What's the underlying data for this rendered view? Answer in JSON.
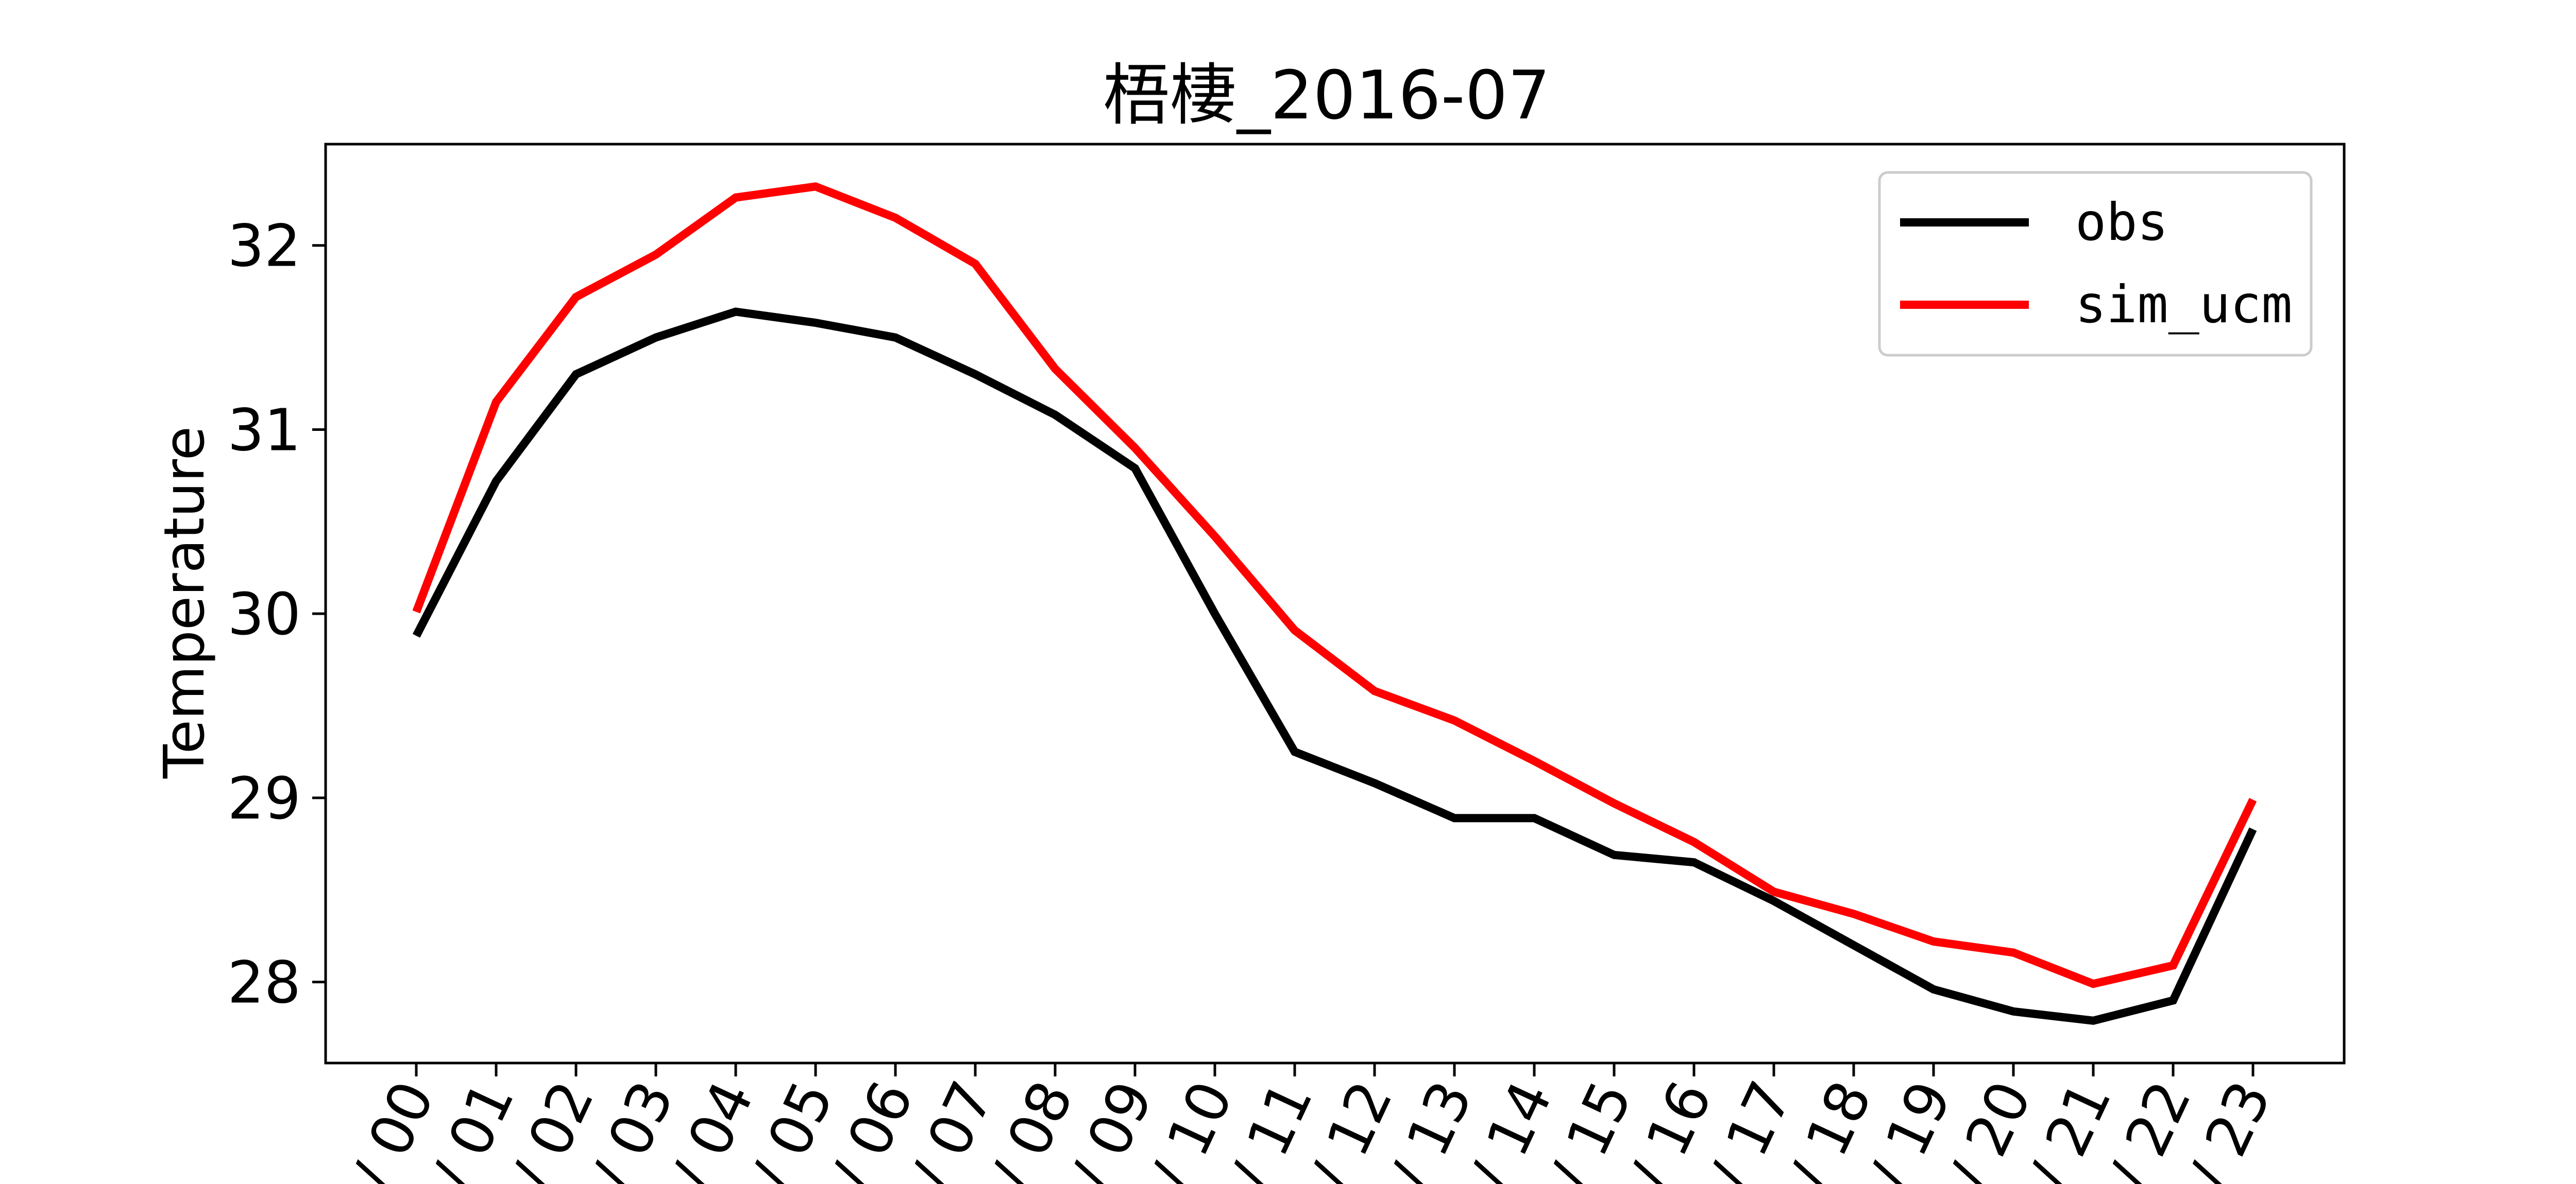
{
  "chart_data": {
    "type": "line",
    "title": "梧棲_2016-07",
    "xlabel": "",
    "ylabel": "Temperature",
    "categories": [
      "00",
      "01",
      "02",
      "03",
      "04",
      "05",
      "06",
      "07",
      "08",
      "09",
      "10",
      "11",
      "12",
      "13",
      "14",
      "15",
      "16",
      "17",
      "18",
      "19",
      "20",
      "21",
      "22",
      "23"
    ],
    "x_tick_prefix": "/ ",
    "yticks": [
      28,
      29,
      30,
      31,
      32
    ],
    "ylim": [
      27.56,
      32.55
    ],
    "grid": false,
    "legend_position": "top-right",
    "series": [
      {
        "name": "obs",
        "color": "#000000",
        "values": [
          29.88,
          30.72,
          31.3,
          31.5,
          31.64,
          31.58,
          31.5,
          31.3,
          31.08,
          30.79,
          30.0,
          29.25,
          29.08,
          28.89,
          28.89,
          28.69,
          28.65,
          28.44,
          28.2,
          27.96,
          27.84,
          27.79,
          27.9,
          28.83
        ]
      },
      {
        "name": "sim_ucm",
        "color": "#ff0000",
        "values": [
          30.01,
          31.15,
          31.72,
          31.95,
          32.26,
          32.32,
          32.15,
          31.9,
          31.33,
          30.9,
          30.42,
          29.91,
          29.58,
          29.42,
          29.2,
          28.97,
          28.76,
          28.49,
          28.37,
          28.22,
          28.16,
          27.99,
          28.09,
          28.99
        ]
      }
    ]
  }
}
